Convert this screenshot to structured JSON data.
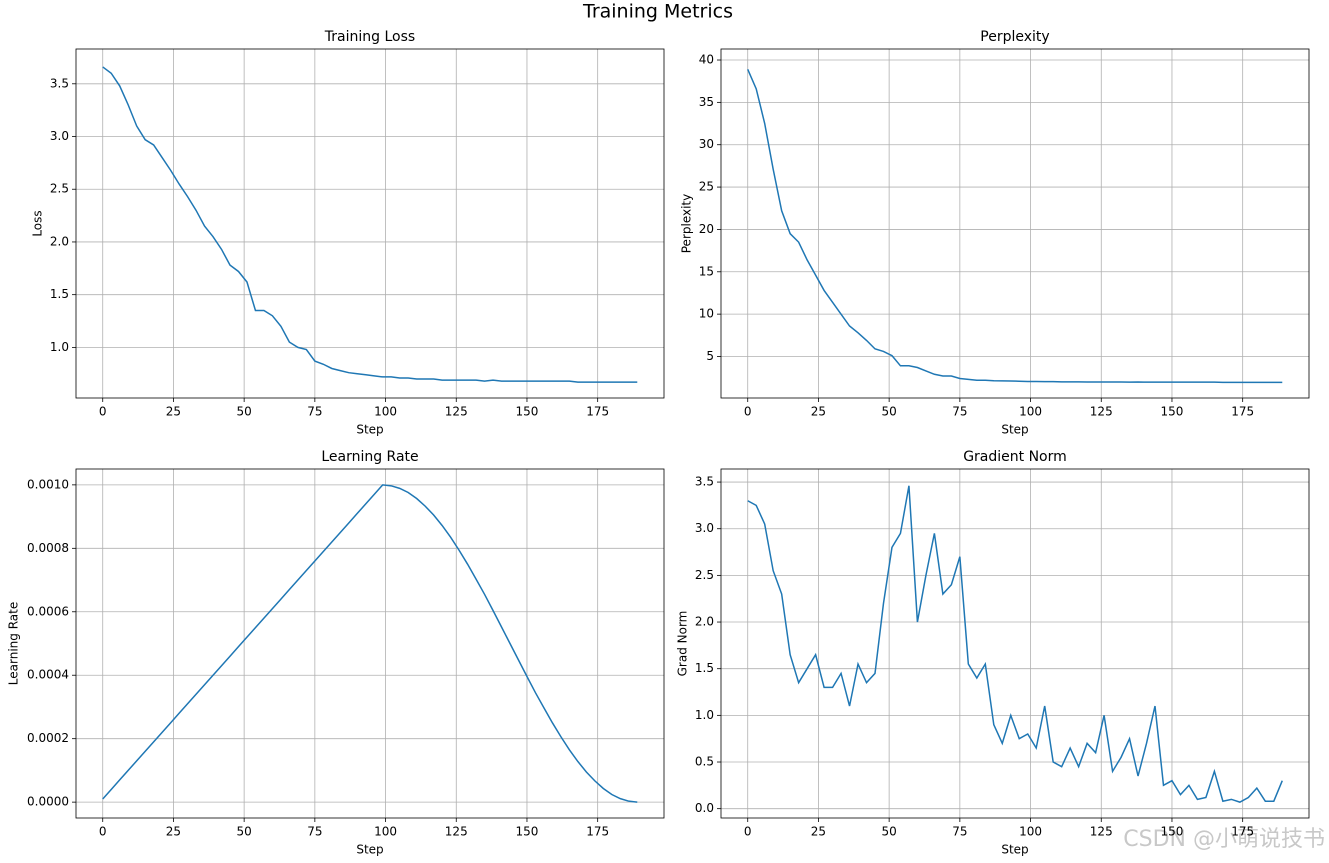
{
  "title": "Training Metrics",
  "watermark": "CSDN @小萌说技书",
  "chart_data": [
    {
      "type": "line",
      "title": "Training Loss",
      "xlabel": "Step",
      "ylabel": "Loss",
      "color": "#1f77b4",
      "grid": true,
      "x": [
        0,
        3,
        6,
        9,
        12,
        15,
        18,
        21,
        24,
        27,
        30,
        33,
        36,
        39,
        42,
        45,
        48,
        51,
        54,
        57,
        60,
        63,
        66,
        69,
        72,
        75,
        78,
        81,
        84,
        87,
        90,
        93,
        96,
        99,
        102,
        105,
        108,
        111,
        114,
        117,
        120,
        123,
        126,
        129,
        132,
        135,
        138,
        141,
        144,
        147,
        150,
        153,
        156,
        159,
        162,
        165,
        168,
        171,
        174,
        177,
        180,
        183,
        186,
        189
      ],
      "values": [
        3.66,
        3.6,
        3.48,
        3.3,
        3.1,
        2.97,
        2.92,
        2.8,
        2.68,
        2.55,
        2.43,
        2.3,
        2.15,
        2.05,
        1.93,
        1.78,
        1.72,
        1.62,
        1.35,
        1.35,
        1.3,
        1.2,
        1.05,
        1.0,
        0.98,
        0.87,
        0.84,
        0.8,
        0.78,
        0.76,
        0.75,
        0.74,
        0.73,
        0.72,
        0.72,
        0.71,
        0.71,
        0.7,
        0.7,
        0.7,
        0.69,
        0.69,
        0.69,
        0.69,
        0.69,
        0.68,
        0.69,
        0.68,
        0.68,
        0.68,
        0.68,
        0.68,
        0.68,
        0.68,
        0.68,
        0.68,
        0.67,
        0.67,
        0.67,
        0.67,
        0.67,
        0.67,
        0.67,
        0.67
      ],
      "xlim": [
        -9.45,
        198.45
      ],
      "xticks": [
        0,
        25,
        50,
        75,
        100,
        125,
        150,
        175
      ],
      "ylim": [
        0.52,
        3.83
      ],
      "yticks": [
        {
          "value": 1.0,
          "label": "1.0"
        },
        1.5,
        {
          "value": 2.0,
          "label": "2.0"
        },
        2.5,
        {
          "value": 3.0,
          "label": "3.0"
        },
        3.5
      ]
    },
    {
      "type": "line",
      "title": "Perplexity",
      "xlabel": "Step",
      "ylabel": "Perplexity",
      "color": "#1f77b4",
      "grid": true,
      "x": [
        0,
        3,
        6,
        9,
        12,
        15,
        18,
        21,
        24,
        27,
        30,
        33,
        36,
        39,
        42,
        45,
        48,
        51,
        54,
        57,
        60,
        63,
        66,
        69,
        72,
        75,
        78,
        81,
        84,
        87,
        90,
        93,
        96,
        99,
        102,
        105,
        108,
        111,
        114,
        117,
        120,
        123,
        126,
        129,
        132,
        135,
        138,
        141,
        144,
        147,
        150,
        153,
        156,
        159,
        162,
        165,
        168,
        171,
        174,
        177,
        180,
        183,
        186,
        189
      ],
      "values": [
        38.9,
        36.6,
        32.5,
        27.1,
        22.2,
        19.5,
        18.5,
        16.4,
        14.6,
        12.8,
        11.4,
        10.0,
        8.6,
        7.8,
        6.9,
        5.9,
        5.6,
        5.1,
        3.9,
        3.9,
        3.7,
        3.3,
        2.9,
        2.7,
        2.7,
        2.4,
        2.3,
        2.2,
        2.2,
        2.14,
        2.12,
        2.1,
        2.08,
        2.05,
        2.05,
        2.03,
        2.03,
        2.01,
        2.01,
        2.01,
        1.99,
        1.99,
        1.99,
        1.99,
        1.99,
        1.97,
        1.99,
        1.97,
        1.97,
        1.97,
        1.97,
        1.97,
        1.97,
        1.97,
        1.97,
        1.97,
        1.95,
        1.95,
        1.95,
        1.95,
        1.95,
        1.95,
        1.95,
        1.95
      ],
      "xlim": [
        -9.45,
        198.45
      ],
      "xticks": [
        0,
        25,
        50,
        75,
        100,
        125,
        150,
        175
      ],
      "ylim": [
        0.1,
        41.3
      ],
      "yticks": [
        5,
        10,
        15,
        20,
        25,
        30,
        35,
        40
      ]
    },
    {
      "type": "line",
      "title": "Learning Rate",
      "xlabel": "Step",
      "ylabel": "Learning Rate",
      "color": "#1f77b4",
      "grid": true,
      "x": [
        0,
        3,
        6,
        9,
        12,
        15,
        18,
        21,
        24,
        27,
        30,
        33,
        36,
        39,
        42,
        45,
        48,
        51,
        54,
        57,
        60,
        63,
        66,
        69,
        72,
        75,
        78,
        81,
        84,
        87,
        90,
        93,
        96,
        99,
        102,
        105,
        108,
        111,
        114,
        117,
        120,
        123,
        126,
        129,
        132,
        135,
        138,
        141,
        144,
        147,
        150,
        153,
        156,
        159,
        162,
        165,
        168,
        171,
        174,
        177,
        180,
        183,
        186,
        189
      ],
      "values": [
        1e-05,
        4e-05,
        7e-05,
        0.0001,
        0.00013,
        0.00016,
        0.00019,
        0.00022,
        0.00025,
        0.00028,
        0.00031,
        0.00034,
        0.00037,
        0.0004,
        0.00043,
        0.00046,
        0.00049,
        0.00052,
        0.00055,
        0.00058,
        0.00061,
        0.00064,
        0.00067,
        0.0007,
        0.00073,
        0.00076,
        0.00079,
        0.00082,
        0.00085,
        0.00088,
        0.00091,
        0.00094,
        0.00097,
        0.001,
        0.000997,
        0.000989,
        0.000976,
        0.000957,
        0.000933,
        0.000905,
        0.000872,
        0.000835,
        0.000794,
        0.00075,
        0.000703,
        0.000655,
        0.000604,
        0.000552,
        0.0005,
        0.000448,
        0.000396,
        0.000345,
        0.000297,
        0.00025,
        0.000206,
        0.000165,
        0.000128,
        9.5e-05,
        6.7e-05,
        4.3e-05,
        2.4e-05,
        1.1e-05,
        3e-06,
        0
      ],
      "xlim": [
        -9.45,
        198.45
      ],
      "xticks": [
        0,
        25,
        50,
        75,
        100,
        125,
        150,
        175
      ],
      "ylim": [
        -5e-05,
        0.00105
      ],
      "yticks": [
        {
          "value": 0,
          "label": "0.0000"
        },
        {
          "value": 0.0002,
          "label": "0.0002"
        },
        {
          "value": 0.0004,
          "label": "0.0004"
        },
        {
          "value": 0.0006,
          "label": "0.0006"
        },
        {
          "value": 0.0008,
          "label": "0.0008"
        },
        {
          "value": 0.001,
          "label": "0.0010"
        }
      ]
    },
    {
      "type": "line",
      "title": "Gradient Norm",
      "xlabel": "Step",
      "ylabel": "Grad Norm",
      "color": "#1f77b4",
      "grid": true,
      "x": [
        0,
        3,
        6,
        9,
        12,
        15,
        18,
        21,
        24,
        27,
        30,
        33,
        36,
        39,
        42,
        45,
        48,
        51,
        54,
        57,
        60,
        63,
        66,
        69,
        72,
        75,
        78,
        81,
        84,
        87,
        90,
        93,
        96,
        99,
        102,
        105,
        108,
        111,
        114,
        117,
        120,
        123,
        126,
        129,
        132,
        135,
        138,
        141,
        144,
        147,
        150,
        153,
        156,
        159,
        162,
        165,
        168,
        171,
        174,
        177,
        180,
        183,
        186,
        189
      ],
      "values": [
        3.3,
        3.25,
        3.05,
        2.55,
        2.3,
        1.65,
        1.35,
        1.5,
        1.65,
        1.3,
        1.3,
        1.45,
        1.1,
        1.55,
        1.35,
        1.45,
        2.2,
        2.8,
        2.95,
        3.46,
        2.0,
        2.5,
        2.95,
        2.3,
        2.4,
        2.7,
        1.55,
        1.4,
        1.55,
        0.9,
        0.7,
        1.0,
        0.75,
        0.8,
        0.65,
        1.1,
        0.5,
        0.45,
        0.65,
        0.45,
        0.7,
        0.6,
        1.0,
        0.4,
        0.55,
        0.75,
        0.35,
        0.7,
        1.1,
        0.25,
        0.3,
        0.15,
        0.25,
        0.1,
        0.12,
        0.4,
        0.08,
        0.1,
        0.07,
        0.12,
        0.22,
        0.08,
        0.08,
        0.3
      ],
      "xlim": [
        -9.45,
        198.45
      ],
      "xticks": [
        0,
        25,
        50,
        75,
        100,
        125,
        150,
        175
      ],
      "ylim": [
        -0.1,
        3.64
      ],
      "yticks": [
        {
          "value": 0,
          "label": "0.0"
        },
        0.5,
        {
          "value": 1.0,
          "label": "1.0"
        },
        1.5,
        {
          "value": 2.0,
          "label": "2.0"
        },
        2.5,
        {
          "value": 3.0,
          "label": "3.0"
        },
        3.5
      ]
    }
  ]
}
